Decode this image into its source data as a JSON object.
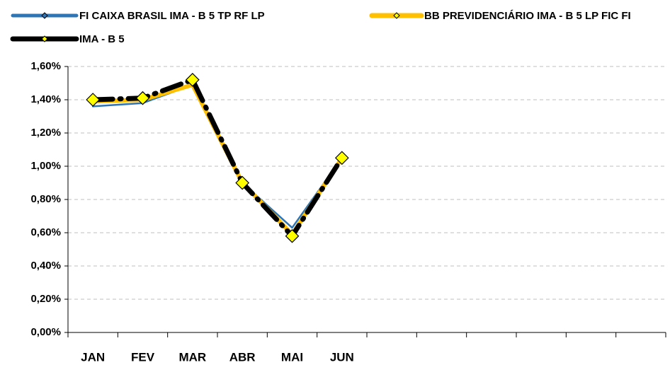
{
  "chart_data": {
    "type": "line",
    "categories": [
      "JAN",
      "FEV",
      "MAR",
      "ABR",
      "MAI",
      "JUN",
      null,
      null,
      null,
      null,
      null,
      null
    ],
    "series": [
      {
        "name": "FI CAIXA BRASIL IMA - B 5 TP RF LP",
        "color": "#2e75b6",
        "values": [
          1.36,
          1.38,
          1.49,
          0.9,
          0.63,
          1.05,
          null,
          null,
          null,
          null,
          null,
          null
        ]
      },
      {
        "name": "BB PREVIDENCIÁRIO IMA - B 5 LP FIC FI",
        "color": "#ffc000",
        "values": [
          1.39,
          1.4,
          1.49,
          0.9,
          0.59,
          1.05,
          null,
          null,
          null,
          null,
          null,
          null
        ]
      },
      {
        "name": "IMA - B 5",
        "color": "#000000",
        "values": [
          1.4,
          1.41,
          1.52,
          0.9,
          0.58,
          1.05,
          null,
          null,
          null,
          null,
          null,
          null
        ]
      }
    ],
    "ylim": [
      0,
      1.6
    ],
    "yticks": [
      {
        "value": 0,
        "label": "0,00%"
      },
      {
        "value": 0.2,
        "label": "0,20%"
      },
      {
        "value": 0.4,
        "label": "0,40%"
      },
      {
        "value": 0.6,
        "label": "0,60%"
      },
      {
        "value": 0.8,
        "label": "0,80%"
      },
      {
        "value": 1.0,
        "label": "1,00%"
      },
      {
        "value": 1.2,
        "label": "1,20%"
      },
      {
        "value": 1.4,
        "label": "1,40%"
      },
      {
        "value": 1.6,
        "label": "1,60%"
      }
    ],
    "grid": true
  }
}
